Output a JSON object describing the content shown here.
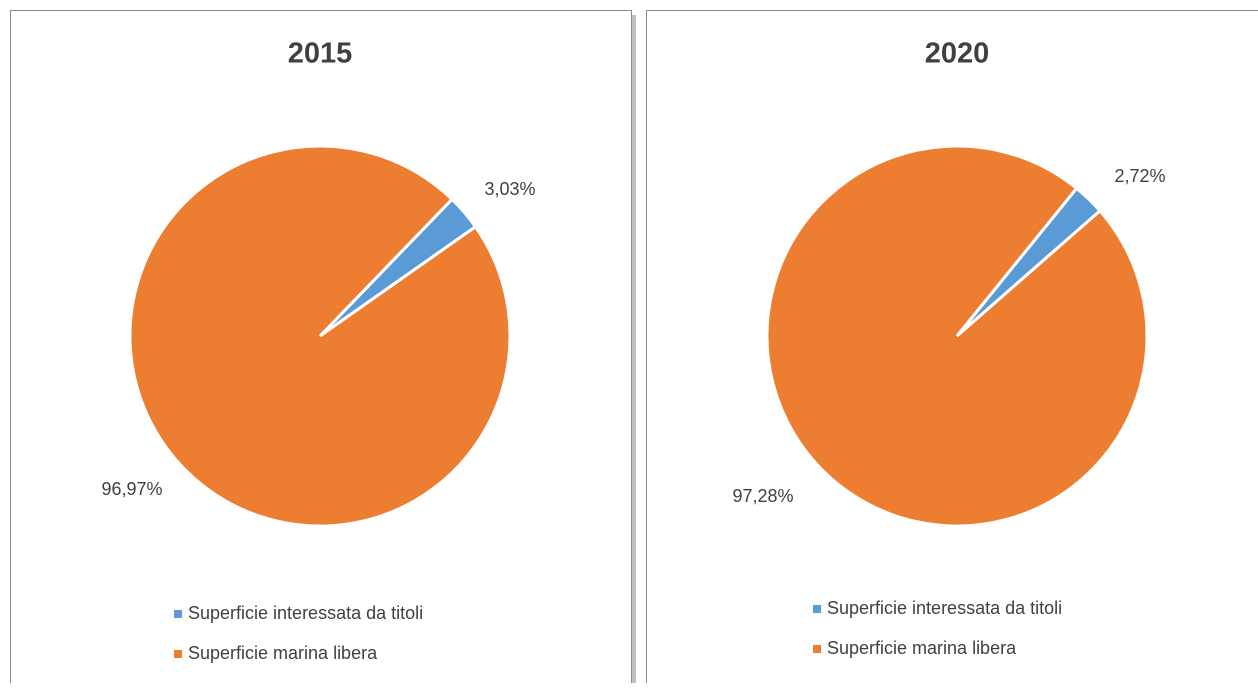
{
  "chart_data": [
    {
      "type": "pie",
      "title": "2015",
      "categories": [
        "Superficie interessata da titoli",
        "Superficie marina libera"
      ],
      "values": [
        3.03,
        96.97
      ],
      "value_labels": [
        "3,03%",
        "96,97%"
      ],
      "colors": [
        "#5b9bd5",
        "#ed7d31"
      ],
      "legend": "bottom"
    },
    {
      "type": "pie",
      "title": "2020",
      "categories": [
        "Superficie interessata da titoli",
        "Superficie marina libera"
      ],
      "values": [
        2.72,
        97.28
      ],
      "value_labels": [
        "2,72%",
        "97,28%"
      ],
      "colors": [
        "#5b9bd5",
        "#ed7d31"
      ],
      "legend": "bottom"
    }
  ]
}
